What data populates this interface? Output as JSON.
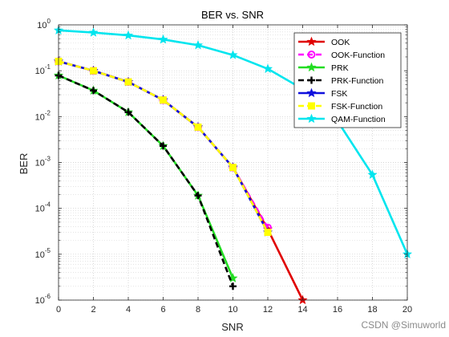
{
  "chart_data": {
    "type": "line",
    "title": "BER vs. SNR",
    "xlabel": "SNR",
    "ylabel": "BER",
    "xlim": [
      0,
      20
    ],
    "ylim": [
      1e-06,
      1
    ],
    "yscale": "log",
    "grid": true,
    "minor_grid": true,
    "legend_position": "top-right",
    "xticks": [
      "0",
      "2",
      "4",
      "6",
      "8",
      "10",
      "12",
      "14",
      "16",
      "18",
      "20"
    ],
    "yticks": [
      {
        "base": "10",
        "exp": "0"
      },
      {
        "base": "10",
        "exp": "-1"
      },
      {
        "base": "10",
        "exp": "-2"
      },
      {
        "base": "10",
        "exp": "-3"
      },
      {
        "base": "10",
        "exp": "-4"
      },
      {
        "base": "10",
        "exp": "-5"
      },
      {
        "base": "10",
        "exp": "-6"
      }
    ],
    "series": [
      {
        "name": "OOK",
        "color": "#e00000",
        "dash": "solid",
        "marker": "star",
        "x": [
          0,
          2,
          4,
          6,
          8,
          10,
          12,
          14
        ],
        "y": [
          0.16,
          0.1,
          0.057,
          0.023,
          0.0059,
          0.00078,
          3.5e-05,
          1e-06
        ]
      },
      {
        "name": "OOK-Function",
        "color": "#ff00ff",
        "dash": "dashed",
        "marker": "circle",
        "x": [
          0,
          2,
          4,
          6,
          8,
          10,
          12
        ],
        "y": [
          0.16,
          0.1,
          0.057,
          0.023,
          0.0059,
          0.00078,
          3.8e-05
        ]
      },
      {
        "name": "PRK",
        "color": "#22dd22",
        "dash": "solid",
        "marker": "star",
        "x": [
          0,
          2,
          4,
          6,
          8,
          10
        ],
        "y": [
          0.079,
          0.037,
          0.0125,
          0.0023,
          0.00019,
          3e-06
        ]
      },
      {
        "name": "PRK-Function",
        "color": "#000000",
        "dash": "dashed",
        "marker": "plus",
        "x": [
          0,
          2,
          4,
          6,
          8,
          10
        ],
        "y": [
          0.079,
          0.037,
          0.0125,
          0.0023,
          0.00019,
          2e-06
        ]
      },
      {
        "name": "FSK",
        "color": "#1010dd",
        "dash": "solid",
        "marker": "star",
        "x": [
          0,
          2,
          4,
          6,
          8,
          10,
          12
        ],
        "y": [
          0.16,
          0.1,
          0.057,
          0.023,
          0.0059,
          0.00078,
          3e-05
        ]
      },
      {
        "name": "FSK-Function",
        "color": "#ffff00",
        "dash": "dashed",
        "marker": "square",
        "x": [
          0,
          2,
          4,
          6,
          8,
          10,
          12
        ],
        "y": [
          0.16,
          0.1,
          0.057,
          0.023,
          0.0059,
          0.00078,
          3e-05
        ]
      },
      {
        "name": "QAM-Function",
        "color": "#00e5ee",
        "dash": "solid",
        "marker": "star",
        "x": [
          0,
          2,
          4,
          6,
          8,
          10,
          12,
          14,
          16,
          18,
          20
        ],
        "y": [
          0.76,
          0.68,
          0.59,
          0.48,
          0.36,
          0.22,
          0.11,
          0.04,
          0.008,
          0.00054,
          1e-05
        ]
      }
    ]
  },
  "watermark": "CSDN @Simuworld"
}
